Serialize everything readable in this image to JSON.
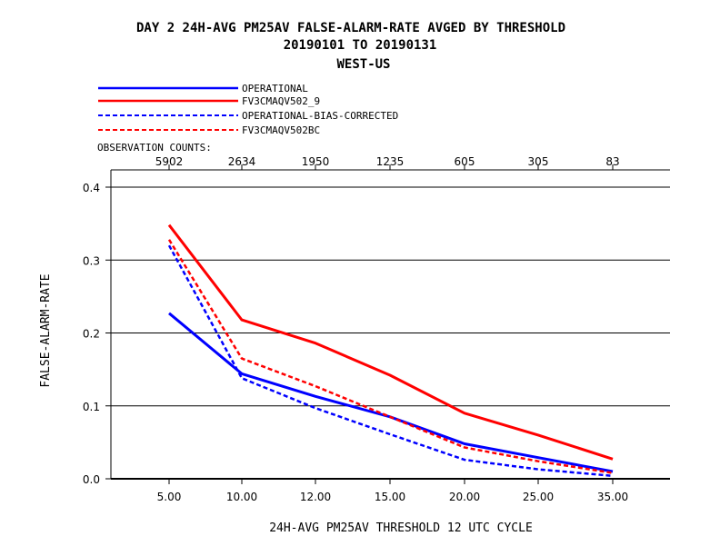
{
  "chart_data": {
    "type": "line",
    "title_lines": [
      "DAY 2   24H-AVG PM25AV FALSE-ALARM-RATE   AVGED BY THRESHOLD",
      "20190101 TO 20190131",
      "WEST-US"
    ],
    "x_categories": [
      "5.00",
      "10.00",
      "12.00",
      "15.00",
      "20.00",
      "25.00",
      "35.00"
    ],
    "xlabel": "24H-AVG PM25AV THRESHOLD     12 UTC CYCLE",
    "ylabel": "FALSE-ALARM-RATE",
    "ylim": [
      0.0,
      0.4
    ],
    "yticks": [
      "0.0",
      "0.1",
      "0.2",
      "0.3",
      "0.4"
    ],
    "grid": "horizontal",
    "legend_placement": "top-left above plot",
    "observation_counts_label": "OBSERVATION COUNTS:",
    "observation_counts": [
      "5902",
      "2634",
      "1950",
      "1235",
      "605",
      "305",
      "83"
    ],
    "series": [
      {
        "name": "OPERATIONAL",
        "color": "#0000ff",
        "dash": "solid",
        "values": [
          0.227,
          0.144,
          0.113,
          0.085,
          0.048,
          0.029,
          0.01
        ]
      },
      {
        "name": "FV3CMAQV502_9",
        "color": "#ff0000",
        "dash": "solid",
        "values": [
          0.348,
          0.218,
          0.186,
          0.142,
          0.09,
          0.06,
          0.027
        ]
      },
      {
        "name": "OPERATIONAL-BIAS-CORRECTED",
        "color": "#0000ff",
        "dash": "dashed",
        "values": [
          0.32,
          0.138,
          0.097,
          0.061,
          0.026,
          0.013,
          0.004
        ]
      },
      {
        "name": "FV3CMAQV502BC",
        "color": "#ff0000",
        "dash": "dashed",
        "values": [
          0.328,
          0.165,
          0.127,
          0.085,
          0.043,
          0.024,
          0.008
        ]
      }
    ]
  }
}
